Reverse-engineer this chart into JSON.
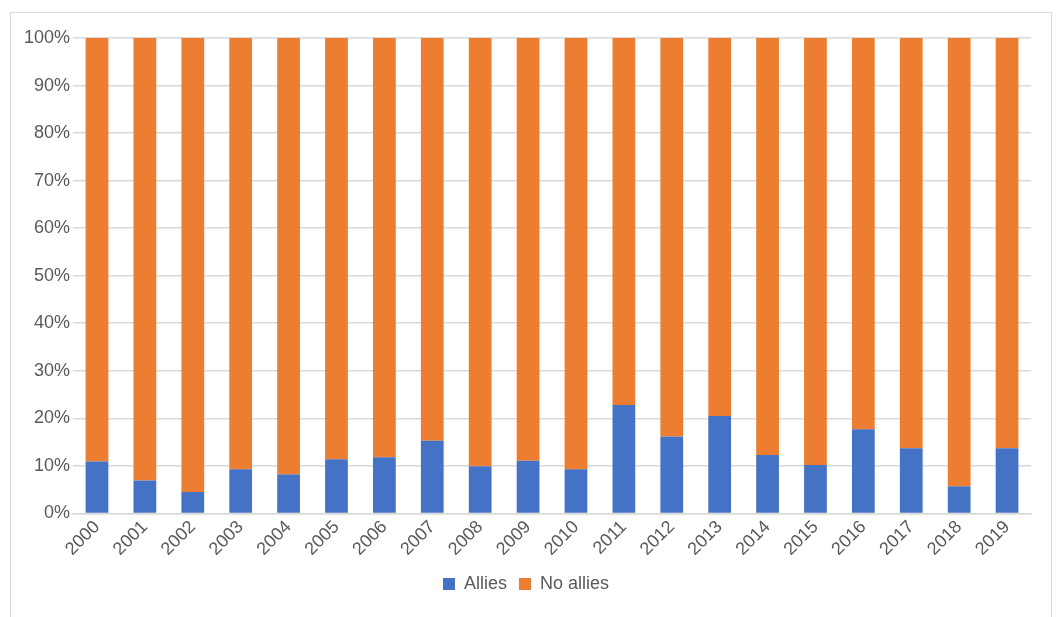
{
  "chart_data": {
    "type": "bar",
    "stacked": true,
    "categories": [
      "2000",
      "2001",
      "2002",
      "2003",
      "2004",
      "2005",
      "2006",
      "2007",
      "2008",
      "2009",
      "2010",
      "2011",
      "2012",
      "2013",
      "2014",
      "2015",
      "2016",
      "2017",
      "2018",
      "2019"
    ],
    "series": [
      {
        "name": "Allies",
        "color": "#4472c4",
        "values": [
          10.9,
          6.9,
          4.5,
          9.3,
          8.2,
          11.4,
          11.8,
          15.3,
          9.9,
          11.1,
          9.3,
          22.8,
          16.2,
          20.5,
          12.3,
          10.2,
          17.7,
          13.7,
          5.7,
          13.7
        ]
      },
      {
        "name": "No allies",
        "color": "#ed7d31",
        "values": [
          89.1,
          93.1,
          95.5,
          90.7,
          91.8,
          88.6,
          88.2,
          84.7,
          90.1,
          88.9,
          90.7,
          77.2,
          83.8,
          79.5,
          87.7,
          89.8,
          82.3,
          86.3,
          94.3,
          86.3
        ]
      }
    ],
    "ylim": [
      0,
      100
    ],
    "yticks": [
      {
        "value": 0,
        "label": "0%"
      },
      {
        "value": 10,
        "label": "10%"
      },
      {
        "value": 20,
        "label": "20%"
      },
      {
        "value": 30,
        "label": "30%"
      },
      {
        "value": 40,
        "label": "40%"
      },
      {
        "value": 50,
        "label": "50%"
      },
      {
        "value": 60,
        "label": "60%"
      },
      {
        "value": 70,
        "label": "70%"
      },
      {
        "value": 80,
        "label": "80%"
      },
      {
        "value": 90,
        "label": "90%"
      },
      {
        "value": 100,
        "label": "100%"
      }
    ],
    "grid": "y",
    "legend": "bottom"
  }
}
